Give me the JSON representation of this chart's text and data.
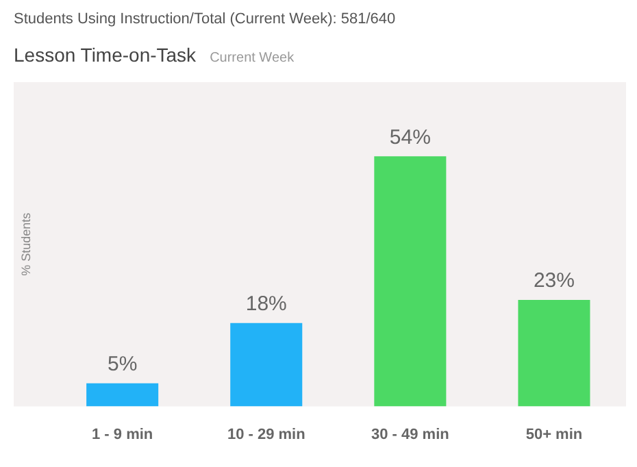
{
  "chart_data": {
    "type": "bar",
    "annotations": [
      "Students Using Instruction/Total (Current Week): 581/640"
    ],
    "title": "Lesson Time-on-Task",
    "subtitle": "Current Week",
    "ylabel": "% Students",
    "categories": [
      "1 - 9 min",
      "10 - 29 min",
      "30 - 49 min",
      "50+ min"
    ],
    "values": [
      5,
      18,
      54,
      23
    ],
    "colors": [
      "#22b2f7",
      "#22b2f7",
      "#4cd964",
      "#4cd964"
    ],
    "value_labels": [
      "5%",
      "18%",
      "54%",
      "23%"
    ],
    "grid": false,
    "legend": false
  }
}
